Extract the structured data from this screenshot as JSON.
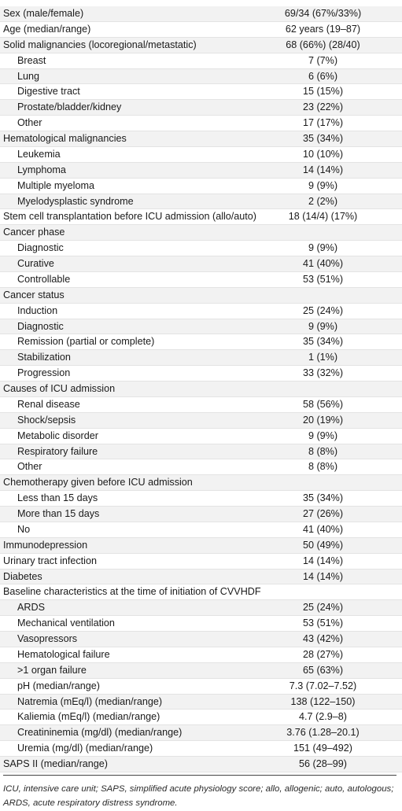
{
  "table": {
    "rows": [
      {
        "label": "Sex (male/female)",
        "value": "69/34 (67%/33%)",
        "indent": false
      },
      {
        "label": "Age (median/range)",
        "value": "62 years (19–87)",
        "indent": false
      },
      {
        "label": "Solid malignancies (locoregional/metastatic)",
        "value": "68 (66%) (28/40)",
        "indent": false
      },
      {
        "label": "Breast",
        "value": "7 (7%)",
        "indent": true
      },
      {
        "label": "Lung",
        "value": "6 (6%)",
        "indent": true
      },
      {
        "label": "Digestive tract",
        "value": "15 (15%)",
        "indent": true
      },
      {
        "label": "Prostate/bladder/kidney",
        "value": "23 (22%)",
        "indent": true
      },
      {
        "label": "Other",
        "value": "17 (17%)",
        "indent": true
      },
      {
        "label": "Hematological malignancies",
        "value": "35 (34%)",
        "indent": false
      },
      {
        "label": "Leukemia",
        "value": "10 (10%)",
        "indent": true
      },
      {
        "label": "Lymphoma",
        "value": "14 (14%)",
        "indent": true
      },
      {
        "label": "Multiple myeloma",
        "value": "9 (9%)",
        "indent": true
      },
      {
        "label": "Myelodysplastic syndrome",
        "value": "2 (2%)",
        "indent": true
      },
      {
        "label": "Stem cell transplantation before ICU admission (allo/auto)",
        "value": "18 (14/4) (17%)",
        "indent": false
      },
      {
        "label": "Cancer phase",
        "value": "",
        "indent": false
      },
      {
        "label": "Diagnostic",
        "value": "9 (9%)",
        "indent": true
      },
      {
        "label": "Curative",
        "value": "41 (40%)",
        "indent": true
      },
      {
        "label": "Controllable",
        "value": "53 (51%)",
        "indent": true
      },
      {
        "label": "Cancer status",
        "value": "",
        "indent": false
      },
      {
        "label": "Induction",
        "value": "25 (24%)",
        "indent": true
      },
      {
        "label": "Diagnostic",
        "value": "9 (9%)",
        "indent": true
      },
      {
        "label": "Remission (partial or complete)",
        "value": "35 (34%)",
        "indent": true
      },
      {
        "label": "Stabilization",
        "value": "1 (1%)",
        "indent": true
      },
      {
        "label": "Progression",
        "value": "33 (32%)",
        "indent": true
      },
      {
        "label": "Causes of ICU admission",
        "value": "",
        "indent": false
      },
      {
        "label": "Renal disease",
        "value": "58 (56%)",
        "indent": true
      },
      {
        "label": "Shock/sepsis",
        "value": "20 (19%)",
        "indent": true
      },
      {
        "label": "Metabolic disorder",
        "value": "9 (9%)",
        "indent": true
      },
      {
        "label": "Respiratory failure",
        "value": "8 (8%)",
        "indent": true
      },
      {
        "label": "Other",
        "value": "8 (8%)",
        "indent": true
      },
      {
        "label": "Chemotherapy given before ICU admission",
        "value": "",
        "indent": false
      },
      {
        "label": "Less than 15 days",
        "value": "35 (34%)",
        "indent": true
      },
      {
        "label": "More than 15 days",
        "value": "27 (26%)",
        "indent": true
      },
      {
        "label": "No",
        "value": "41 (40%)",
        "indent": true
      },
      {
        "label": "Immunodepression",
        "value": "50 (49%)",
        "indent": false
      },
      {
        "label": "Urinary tract infection",
        "value": "14 (14%)",
        "indent": false
      },
      {
        "label": "Diabetes",
        "value": "14 (14%)",
        "indent": false
      },
      {
        "label": "Baseline characteristics at the time of initiation of CVVHDF",
        "value": "",
        "indent": false
      },
      {
        "label": "ARDS",
        "value": "25 (24%)",
        "indent": true
      },
      {
        "label": "Mechanical ventilation",
        "value": "53 (51%)",
        "indent": true
      },
      {
        "label": "Vasopressors",
        "value": "43 (42%)",
        "indent": true
      },
      {
        "label": "Hematological failure",
        "value": "28 (27%)",
        "indent": true
      },
      {
        "label": ">1 organ failure",
        "value": "65 (63%)",
        "indent": true
      },
      {
        "label": "pH (median/range)",
        "value": "7.3 (7.02–7.52)",
        "indent": true
      },
      {
        "label": "Natremia (mEq/l) (median/range)",
        "value": "138 (122–150)",
        "indent": true
      },
      {
        "label": "Kaliemia (mEq/l) (median/range)",
        "value": "4.7 (2.9–8)",
        "indent": true
      },
      {
        "label": "Creatininemia (mg/dl) (median/range)",
        "value": "3.76 (1.28–20.1)",
        "indent": true
      },
      {
        "label": "Uremia (mg/dl) (median/range)",
        "value": "151 (49–492)",
        "indent": true
      },
      {
        "label": "SAPS II (median/range)",
        "value": "56 (28–99)",
        "indent": false
      }
    ]
  },
  "footnote": "ICU, intensive care unit; SAPS, simplified acute physiology score; allo, allogenic; auto, autologous; ARDS, acute respiratory distress syndrome."
}
